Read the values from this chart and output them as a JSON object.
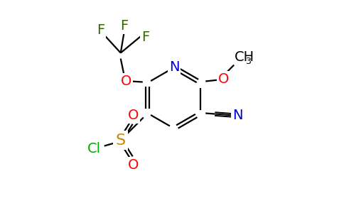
{
  "bg_color": "#ffffff",
  "atom_colors": {
    "C": "#000000",
    "N": "#0000cd",
    "O": "#ff0000",
    "F": "#336600",
    "S": "#cc8800",
    "Cl": "#00aa00",
    "H": "#000000"
  },
  "bond_color": "#000000",
  "font_size_atom": 14,
  "font_size_subscript": 9,
  "figsize": [
    4.84,
    3.0
  ],
  "dpi": 100
}
